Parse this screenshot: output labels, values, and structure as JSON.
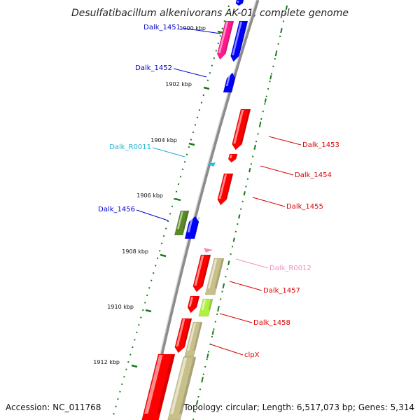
{
  "title": "Desulfatibacillum alkenivorans AK-01, complete genome",
  "footer": {
    "accession": "Accession: NC_011768",
    "summary": "Topology: circular; Length: 6,517,073 bp; Genes: 5,314"
  },
  "colors": {
    "backbone": "#909090",
    "tick": "#1a7a1a",
    "red_gene": "#ff0000",
    "blue_gene": "#0000ff",
    "magenta_gene": "#ff1a8c",
    "khaki_gene": "#c8c08a",
    "olive_gene": "#5a8a28",
    "lime_gene": "#b0f040",
    "cyan_rna": "#20c0e0",
    "pink_rna": "#f090c0"
  },
  "ticks": [
    {
      "label": "1900 kbp"
    },
    {
      "label": "1902 kbp"
    },
    {
      "label": "1904 kbp"
    },
    {
      "label": "1906 kbp"
    },
    {
      "label": "1908 kbp"
    },
    {
      "label": "1910 kbp"
    },
    {
      "label": "1912 kbp"
    }
  ],
  "labels": [
    {
      "text": "Dalk_1451",
      "color": "#0000cc"
    },
    {
      "text": "Dalk_1452",
      "color": "#0000cc"
    },
    {
      "text": "Dalk_R0011",
      "color": "#20b0d0"
    },
    {
      "text": "Dalk_1456",
      "color": "#0000cc"
    },
    {
      "text": "Dalk_1453",
      "color": "#dd0000"
    },
    {
      "text": "Dalk_1454",
      "color": "#dd0000"
    },
    {
      "text": "Dalk_1455",
      "color": "#dd0000"
    },
    {
      "text": "Dalk_R0012",
      "color": "#f090c0"
    },
    {
      "text": "Dalk_1457",
      "color": "#dd0000"
    },
    {
      "text": "Dalk_1458",
      "color": "#dd0000"
    },
    {
      "text": "clpX",
      "color": "#dd0000"
    }
  ]
}
